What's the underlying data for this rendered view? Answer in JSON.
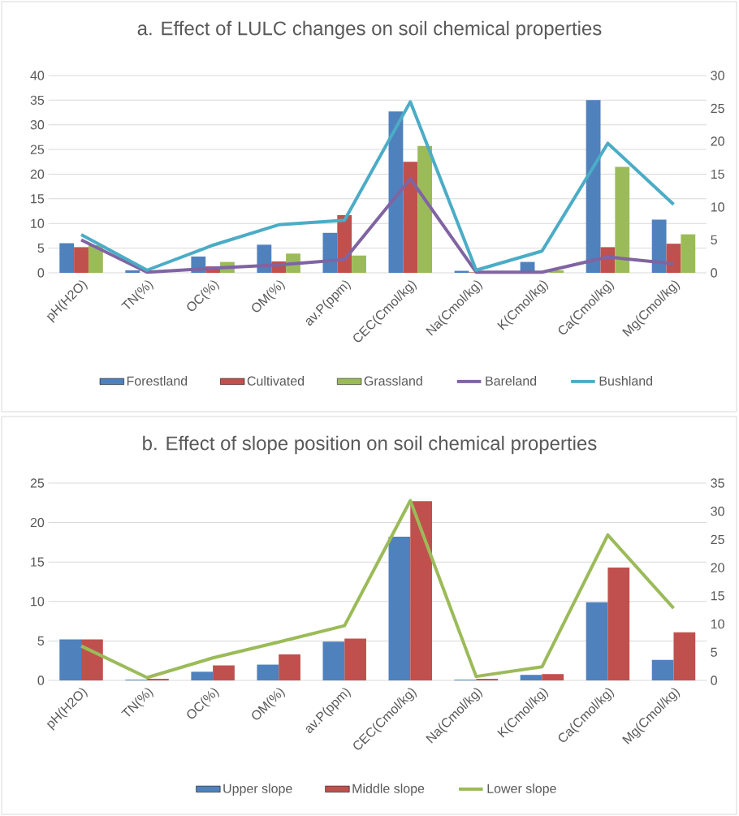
{
  "chart_data": [
    {
      "type": "bar",
      "title": "a. Effect of LULC changes on soil chemical properties",
      "categories": [
        "pH(H2O)",
        "TN(%)",
        "OC(%)",
        "OM(%)",
        "av.P(ppm)",
        "CEC(Cmol/kg)",
        "Na(Cmol/kg)",
        "K(Cmol/kg)",
        "Ca(Cmol/kg)",
        "Mg(Cmol/kg)"
      ],
      "ylim": [
        0,
        40
      ],
      "yticks": [
        0,
        5,
        10,
        15,
        20,
        25,
        30,
        35,
        40
      ],
      "y2lim": [
        0,
        30
      ],
      "y2ticks": [
        0,
        5,
        10,
        15,
        20,
        25,
        30
      ],
      "grid": "y",
      "legend": "bottom",
      "series": [
        {
          "name": "Forestland",
          "color": "#4f81bd",
          "values": [
            6.0,
            0.5,
            3.3,
            5.7,
            8.1,
            32.7,
            0.4,
            2.2,
            35.0,
            10.8
          ]
        },
        {
          "name": "Cultivated",
          "color": "#c0504d",
          "values": [
            5.2,
            null,
            1.3,
            2.3,
            11.7,
            22.5,
            0.1,
            null,
            5.2,
            5.9
          ]
        },
        {
          "name": "Grassland",
          "color": "#9bbb59",
          "values": [
            5.6,
            null,
            2.2,
            3.9,
            3.5,
            25.7,
            null,
            0.5,
            21.5,
            7.8
          ]
        },
        {
          "name": "Bareland",
          "type": "line",
          "axis": "y2",
          "color": "#8064a2",
          "values": [
            5.0,
            0.1,
            0.7,
            1.2,
            2.0,
            14.3,
            0.1,
            0.1,
            2.4,
            1.4
          ]
        },
        {
          "name": "Bushland",
          "type": "line",
          "axis": "y2",
          "color": "#4bacc6",
          "values": [
            5.8,
            0.4,
            4.2,
            7.3,
            8.0,
            26.0,
            0.4,
            3.3,
            19.7,
            10.4
          ]
        }
      ]
    },
    {
      "type": "bar",
      "title": "b. Effect of slope position on soil chemical properties",
      "categories": [
        "pH(H2O)",
        "TN(%)",
        "OC(%)",
        "OM(%)",
        "av.P(ppm)",
        "CEC(Cmol/kg)",
        "Na(Cmol/kg)",
        "K(Cmol/kg)",
        "Ca(Cmol/kg)",
        "Mg(Cmol/kg)"
      ],
      "ylim": [
        0,
        25
      ],
      "yticks": [
        0,
        5,
        10,
        15,
        20,
        25
      ],
      "y2lim": [
        0,
        35
      ],
      "y2ticks": [
        0,
        5,
        10,
        15,
        20,
        25,
        30,
        35
      ],
      "grid": "y",
      "legend": "bottom",
      "series": [
        {
          "name": "Upper slope",
          "color": "#4f81bd",
          "values": [
            5.2,
            0.1,
            1.1,
            2.0,
            4.9,
            18.2,
            0.1,
            0.7,
            9.9,
            2.6
          ]
        },
        {
          "name": "Middle slope",
          "color": "#c0504d",
          "values": [
            5.2,
            0.2,
            1.9,
            3.3,
            5.3,
            22.7,
            0.2,
            0.8,
            14.3,
            6.1
          ]
        },
        {
          "name": "Lower slope",
          "type": "line",
          "axis": "y2",
          "color": "#9bbb59",
          "values": [
            6.1,
            0.5,
            4.0,
            6.8,
            9.7,
            31.9,
            0.7,
            2.4,
            25.8,
            12.8
          ]
        }
      ]
    }
  ]
}
